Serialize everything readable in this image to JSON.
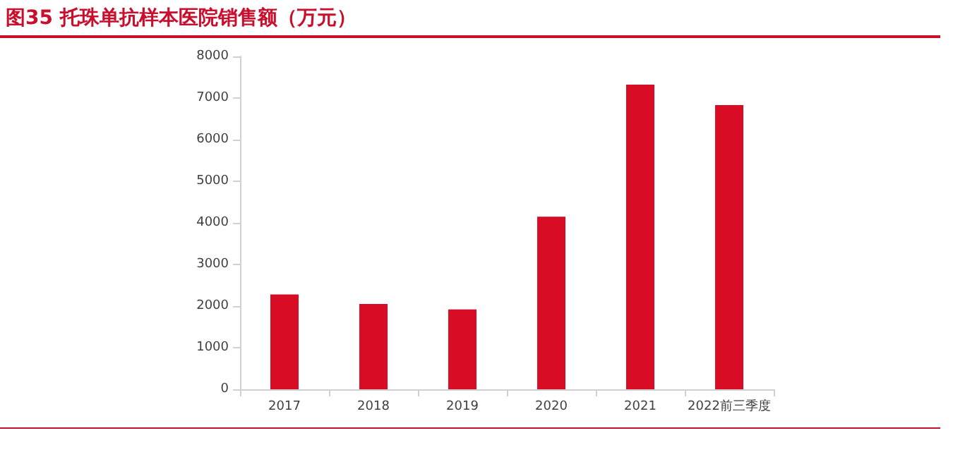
{
  "chart_data": {
    "type": "bar",
    "title": "图35  托珠单抗样本医院销售额（万元）",
    "categories": [
      "2017",
      "2018",
      "2019",
      "2020",
      "2021",
      "2022前三季度"
    ],
    "values": [
      2280,
      2050,
      1920,
      4150,
      7320,
      6830
    ],
    "color": "#d80c24",
    "ylim": [
      0,
      8000
    ],
    "yticks": [
      0,
      1000,
      2000,
      3000,
      4000,
      5000,
      6000,
      7000,
      8000
    ],
    "grid": false
  }
}
